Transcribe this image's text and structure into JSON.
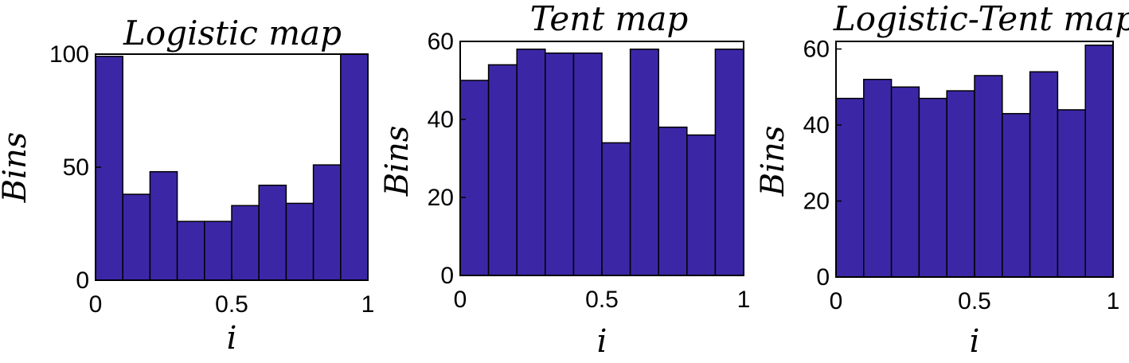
{
  "chart_data": [
    {
      "type": "bar",
      "title": "Logistic map",
      "xlabel": "i",
      "ylabel": "Bins",
      "x_bin_edges": [
        0,
        0.1,
        0.2,
        0.3,
        0.4,
        0.5,
        0.6,
        0.7,
        0.8,
        0.9,
        1.0
      ],
      "values": [
        99,
        38,
        48,
        26,
        26,
        33,
        42,
        34,
        51,
        100
      ],
      "xlim": [
        0,
        1
      ],
      "ylim": [
        0,
        100
      ],
      "xticks": [
        "0",
        "0.5",
        "1"
      ],
      "yticks": [
        "0",
        "50",
        "100"
      ],
      "ytick_values": [
        0,
        50,
        100
      ],
      "bar_color": "#3b27a6",
      "grid": false
    },
    {
      "type": "bar",
      "title": "Tent map",
      "xlabel": "i",
      "ylabel": "Bins",
      "x_bin_edges": [
        0,
        0.1,
        0.2,
        0.3,
        0.4,
        0.5,
        0.6,
        0.7,
        0.8,
        0.9,
        1.0
      ],
      "values": [
        50,
        54,
        58,
        57,
        57,
        34,
        58,
        38,
        36,
        58
      ],
      "xlim": [
        0,
        1
      ],
      "ylim": [
        0,
        60
      ],
      "xticks": [
        "0",
        "0.5",
        "1"
      ],
      "yticks": [
        "0",
        "20",
        "40",
        "60"
      ],
      "ytick_values": [
        0,
        20,
        40,
        60
      ],
      "bar_color": "#3b27a6",
      "grid": false
    },
    {
      "type": "bar",
      "title": "Logistic-Tent map",
      "xlabel": "i",
      "ylabel": "Bins",
      "x_bin_edges": [
        0,
        0.1,
        0.2,
        0.3,
        0.4,
        0.5,
        0.6,
        0.7,
        0.8,
        0.9,
        1.0
      ],
      "values": [
        47,
        52,
        50,
        47,
        49,
        53,
        43,
        54,
        44,
        61
      ],
      "xlim": [
        0,
        1
      ],
      "ylim": [
        0,
        62
      ],
      "xticks": [
        "0",
        "0.5",
        "1"
      ],
      "yticks": [
        "0",
        "20",
        "40",
        "60"
      ],
      "ytick_values": [
        0,
        20,
        40,
        60
      ],
      "bar_color": "#3b27a6",
      "grid": false
    }
  ]
}
